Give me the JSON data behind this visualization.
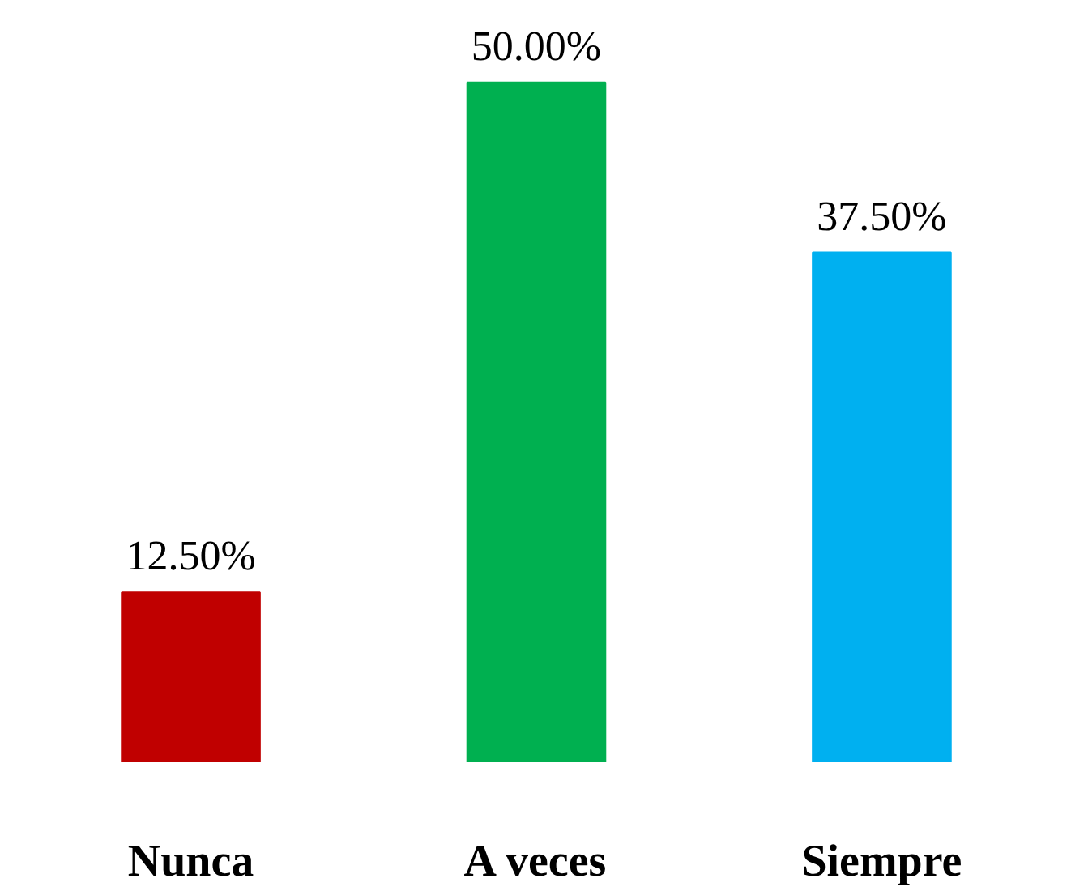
{
  "chart_data": {
    "type": "bar",
    "categories": [
      "Nunca",
      "A veces",
      "Siempre"
    ],
    "values": [
      12.5,
      50.0,
      37.5
    ],
    "colors": [
      "#c00000",
      "#00b050",
      "#00b0f0"
    ],
    "value_labels": [
      "12.50%",
      "50.00%",
      "37.50%"
    ],
    "grid": false
  }
}
